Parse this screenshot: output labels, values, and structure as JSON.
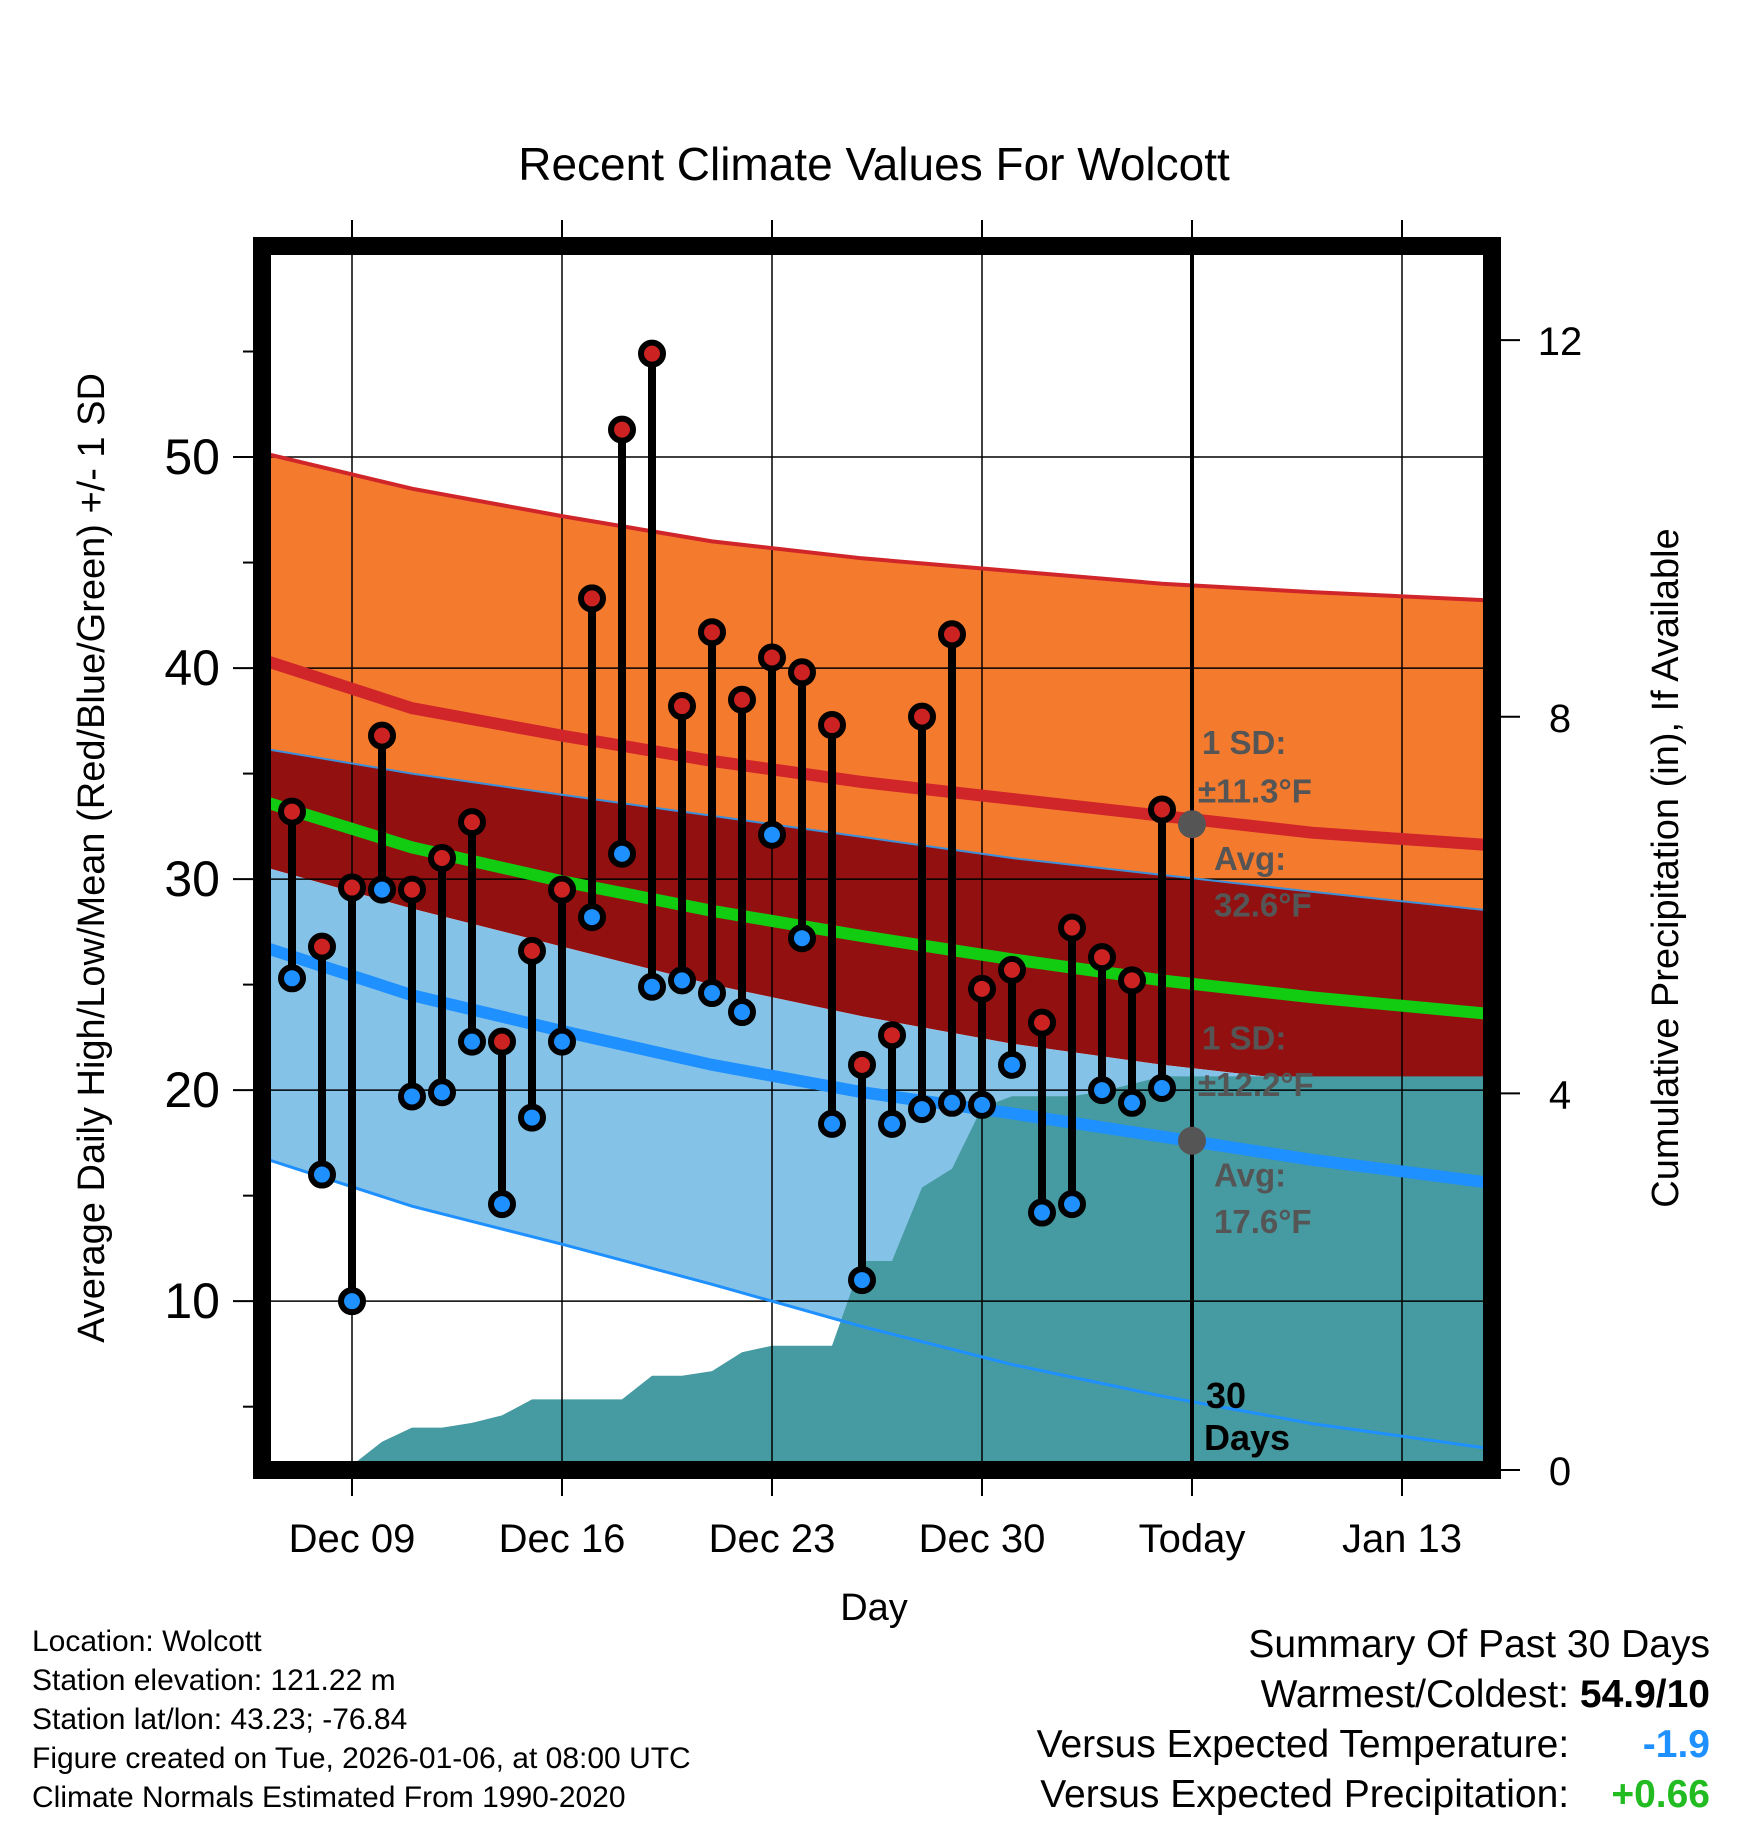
{
  "chart_data": {
    "type": "line",
    "title": "Recent Climate Values For Wolcott",
    "xlabel": "Day",
    "ylabel_left": "Average Daily High/Low/Mean (Red/Blue/Green) +/- 1 SD",
    "ylabel_right": "Cumulative Precipitation (in), If Available",
    "ylim_left": [
      2,
      60
    ],
    "ylim_right": [
      0,
      13
    ],
    "xlim_days": [
      0,
      41
    ],
    "y_ticks_left": [
      10,
      20,
      30,
      40,
      50
    ],
    "y_ticks_right": [
      0,
      4,
      8,
      12
    ],
    "x_ticks": [
      {
        "day": 3,
        "label": "Dec 09"
      },
      {
        "day": 10,
        "label": "Dec 16"
      },
      {
        "day": 17,
        "label": "Dec 23"
      },
      {
        "day": 24,
        "label": "Dec 30"
      },
      {
        "day": 31,
        "label": "Today"
      },
      {
        "day": 38,
        "label": "Jan 13"
      }
    ],
    "today_day": 31,
    "normals": {
      "days": [
        0,
        5,
        10,
        15,
        20,
        25,
        30,
        35,
        41
      ],
      "high_plus_sd": [
        50.2,
        48.5,
        47.2,
        46.0,
        45.2,
        44.6,
        44.0,
        43.6,
        43.2
      ],
      "high_avg": [
        40.4,
        38.1,
        36.8,
        35.6,
        34.6,
        33.8,
        33.0,
        32.2,
        31.6
      ],
      "mean_plus_sd": [
        36.2,
        35.0,
        34.0,
        33.0,
        32.0,
        31.0,
        30.2,
        29.4,
        28.5
      ],
      "mean_avg": [
        33.7,
        31.5,
        29.9,
        28.5,
        27.3,
        26.2,
        25.2,
        24.4,
        23.6
      ],
      "low_plus_sd_edge": [
        30.6,
        28.6,
        26.8,
        25.0,
        23.5,
        22.2,
        21.2,
        20.4,
        20.0
      ],
      "low_avg": [
        26.8,
        24.5,
        22.8,
        21.2,
        19.9,
        18.9,
        17.8,
        16.7,
        15.6
      ],
      "low_minus_sd": [
        16.8,
        14.5,
        12.7,
        10.8,
        8.8,
        7.0,
        5.5,
        4.2,
        3.0
      ]
    },
    "series": [
      {
        "name": "Daily High",
        "color": "#cc2222",
        "values": [
          33.2,
          26.8,
          29.6,
          36.8,
          29.5,
          31.0,
          32.7,
          22.3,
          26.6,
          29.5,
          43.3,
          51.3,
          54.9,
          38.2,
          41.7,
          38.5,
          40.5,
          39.8,
          37.3,
          21.2,
          22.6,
          37.7,
          41.6,
          24.8,
          25.7,
          23.2,
          27.7,
          26.3,
          25.2,
          33.3
        ]
      },
      {
        "name": "Daily Low",
        "color": "#1e90ff",
        "values": [
          25.3,
          16.0,
          10.0,
          29.5,
          19.7,
          19.9,
          22.3,
          14.6,
          18.7,
          22.3,
          28.2,
          31.2,
          24.9,
          25.2,
          24.6,
          23.7,
          32.1,
          27.2,
          18.4,
          11.0,
          18.4,
          19.1,
          19.4,
          19.3,
          21.2,
          14.2,
          14.6,
          20.0,
          19.4,
          20.1
        ]
      }
    ],
    "precip_days": [
      2,
      3,
      4,
      5,
      6,
      7,
      8,
      9,
      10,
      11,
      12,
      13,
      14,
      15,
      16,
      17,
      18,
      19,
      20,
      21,
      22,
      23,
      24,
      25,
      26,
      27,
      28,
      29,
      30,
      31,
      41
    ],
    "precip_cumulative": [
      0.0,
      0.05,
      0.3,
      0.45,
      0.45,
      0.5,
      0.58,
      0.75,
      0.75,
      0.75,
      0.75,
      1.0,
      1.0,
      1.05,
      1.25,
      1.32,
      1.32,
      1.32,
      2.22,
      2.22,
      3.0,
      3.2,
      3.85,
      3.97,
      3.97,
      3.97,
      4.02,
      4.1,
      4.18,
      4.18,
      4.18
    ],
    "annotations": {
      "high_sd_label": "1 SD:",
      "high_sd_value": "±11.3°F",
      "high_avg_label": "Avg:",
      "high_avg_value": "32.6°F",
      "low_sd_label": "1 SD:",
      "low_sd_value": "±12.2°F",
      "low_avg_label": "Avg:",
      "low_avg_value": "17.6°F",
      "today_high_avg": 32.6,
      "today_low_avg": 17.6,
      "days_num": "30",
      "days_word": "Days"
    }
  },
  "info": {
    "location": "Location: Wolcott",
    "elevation": "Station elevation: 121.22 m",
    "latlon": "Station lat/lon: 43.23; -76.84",
    "created": "Figure created on Tue, 2026-01-06, at 08:00 UTC",
    "normals": "Climate Normals Estimated From 1990-2020"
  },
  "summary": {
    "heading": "Summary Of Past 30 Days",
    "warmest_label": "Warmest/Coldest:",
    "warmest_value": "54.9/10",
    "temp_label": "Versus Expected Temperature:",
    "temp_value": "-1.9",
    "temp_color": "#1e90ff",
    "precip_label": "Versus Expected Precipitation:",
    "precip_value": "+0.66",
    "precip_color": "#22bb22"
  }
}
